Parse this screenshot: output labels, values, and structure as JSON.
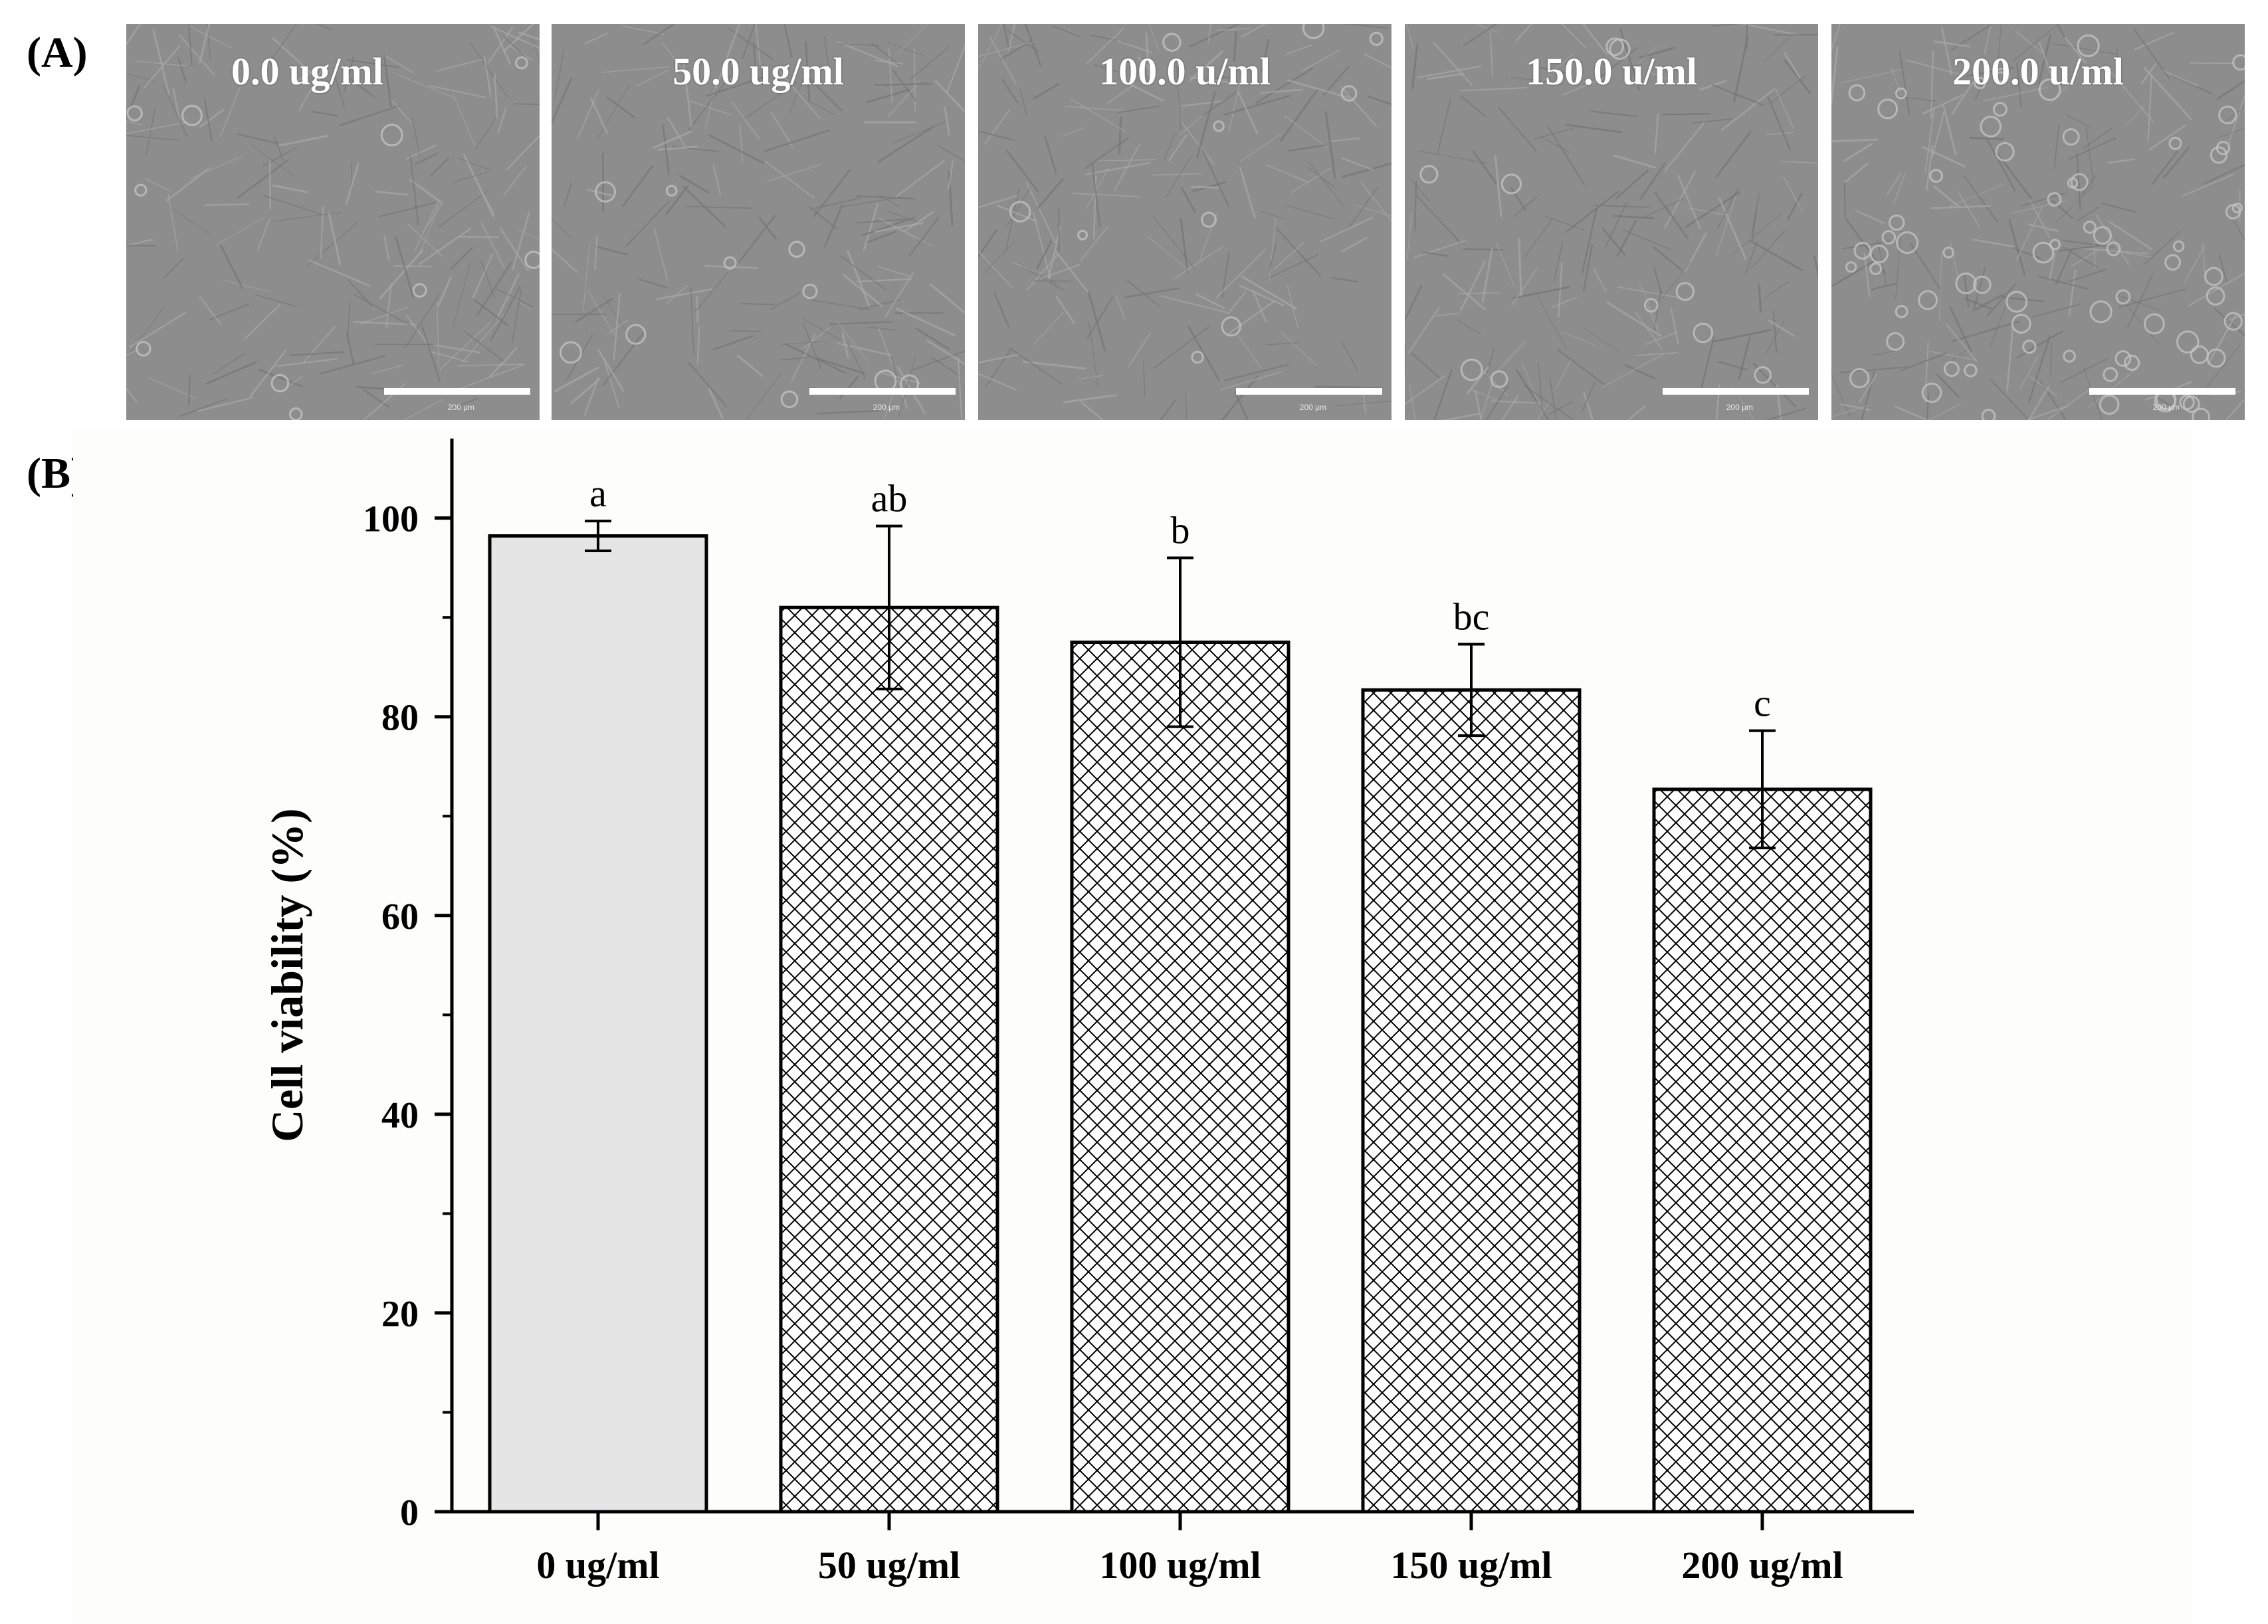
{
  "panel_labels": {
    "a": "(A)",
    "b": "(B)"
  },
  "micrographs": [
    {
      "label": "0.0 ug/ml",
      "scale_text": "200 μm"
    },
    {
      "label": "50.0 ug/ml",
      "scale_text": "200 μm"
    },
    {
      "label": "100.0 u/ml",
      "scale_text": "200 μm"
    },
    {
      "label": "150.0 u/ml",
      "scale_text": "200 μm"
    },
    {
      "label": "200.0 u/ml",
      "scale_text": "200 μm"
    }
  ],
  "chart_data": {
    "type": "bar",
    "title": "",
    "xlabel": "",
    "ylabel": "Cell viability (%)",
    "ylim": [
      0,
      108
    ],
    "yticks": [
      0,
      20,
      40,
      60,
      80,
      100
    ],
    "categories": [
      "0 ug/ml",
      "50 ug/ml",
      "100 ug/ml",
      "150 ug/ml",
      "200 ug/ml"
    ],
    "values": [
      98.2,
      91.0,
      87.5,
      82.7,
      72.7
    ],
    "errors": [
      1.5,
      8.2,
      8.5,
      4.6,
      5.9
    ],
    "significance_letters": [
      "a",
      "ab",
      "b",
      "bc",
      "c"
    ],
    "bar_fills": [
      "solid-light-gray",
      "crosshatch",
      "crosshatch",
      "crosshatch",
      "crosshatch"
    ],
    "colors": {
      "solid_fill": "#e5e5e5",
      "hatch": "#000000",
      "plot_background": "#fdfdfb"
    }
  }
}
